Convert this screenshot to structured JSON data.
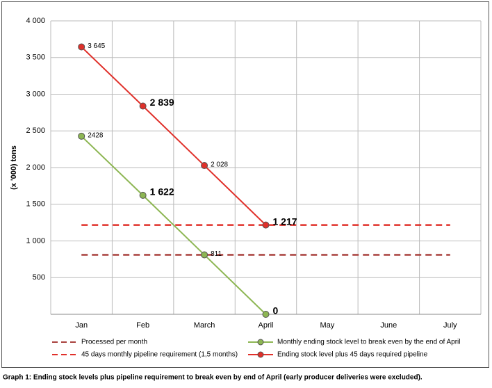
{
  "chart_data": {
    "type": "line",
    "caption": "Graph 1: Ending stock levels plus pipeline requirement to break even by end of April (early producer deliveries were excluded).",
    "y_label": "(x '000) tons",
    "categories": [
      "Jan",
      "Feb",
      "March",
      "April",
      "May",
      "June",
      "July"
    ],
    "ylim": [
      0,
      4000
    ],
    "yticks": [
      500,
      {
        "value": 1000,
        "label": "1 000"
      },
      {
        "value": 1500,
        "label": "1 500"
      },
      {
        "value": 2000,
        "label": "2 000"
      },
      {
        "value": 2500,
        "label": "2 500"
      },
      {
        "value": 3000,
        "label": "3 000"
      },
      {
        "value": 3500,
        "label": "3 500"
      },
      {
        "value": 4000,
        "label": "4 000"
      }
    ],
    "grid": true,
    "series": [
      {
        "name": "Processed per month",
        "color": "#a8413d",
        "style": "dashed",
        "markers": false,
        "values": [
          811,
          811,
          811,
          811,
          811,
          811,
          811
        ]
      },
      {
        "name": "45 days monthly pipeline requirement (1,5 months)",
        "color": "#e0302a",
        "style": "dashed",
        "markers": false,
        "values": [
          1217,
          1217,
          1217,
          1217,
          1217,
          1217,
          1217
        ]
      },
      {
        "name": "Monthly ending stock level to break even by the end of April",
        "color": "#8db653",
        "style": "solid",
        "markers": true,
        "values": [
          2428,
          1622,
          811,
          0,
          null,
          null,
          null
        ],
        "value_labels": [
          "2428",
          "1 622",
          "811",
          "0",
          null,
          null,
          null
        ]
      },
      {
        "name": "Ending stock level plus 45 days required pipeline",
        "color": "#e0302a",
        "style": "solid",
        "markers": true,
        "values": [
          3645,
          2839,
          2028,
          1217,
          null,
          null,
          null
        ],
        "value_labels": [
          "3 645",
          "2 839",
          "2 028",
          "1 217",
          null,
          null,
          null
        ]
      }
    ]
  }
}
